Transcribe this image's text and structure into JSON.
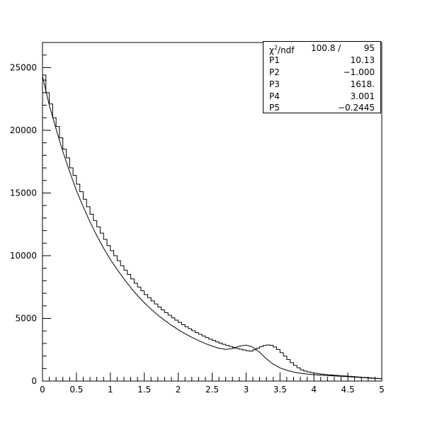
{
  "chart_data": {
    "type": "line",
    "title": "",
    "xlabel": "",
    "ylabel": "",
    "xlim": [
      0,
      5
    ],
    "ylim": [
      0,
      27000
    ],
    "x_ticks": [
      0,
      0.5,
      1,
      1.5,
      2,
      2.5,
      3,
      3.5,
      4,
      4.5,
      5
    ],
    "x_tick_labels": [
      "0",
      "0.5",
      "1",
      "1.5",
      "2",
      "2.5",
      "3",
      "3.5",
      "4",
      "4.5",
      "5"
    ],
    "y_ticks": [
      0,
      5000,
      10000,
      15000,
      20000,
      25000
    ],
    "y_tick_labels": [
      "0",
      "5000",
      "10000",
      "15000",
      "20000",
      "25000"
    ],
    "grid": false,
    "series": [
      {
        "kind": "histogram",
        "bin_edges_start": 0,
        "bin_width": 0.05,
        "values": [
          24400,
          23000,
          22100,
          21000,
          20300,
          19400,
          18500,
          17800,
          17000,
          16400,
          15700,
          15100,
          14500,
          13900,
          13300,
          12800,
          12300,
          11800,
          11300,
          10800,
          10400,
          10000,
          9600,
          9200,
          8850,
          8500,
          8150,
          7800,
          7500,
          7200,
          6900,
          6650,
          6400,
          6150,
          5900,
          5680,
          5460,
          5250,
          5050,
          4860,
          4680,
          4500,
          4330,
          4170,
          4020,
          3870,
          3730,
          3600,
          3470,
          3350,
          3240,
          3130,
          3030,
          2930,
          2840,
          2760,
          2680,
          2600,
          2540,
          2480,
          2420,
          2390,
          2500,
          2620,
          2750,
          2840,
          2880,
          2850,
          2720,
          2520,
          2270,
          2000,
          1720,
          1470,
          1250,
          1060,
          900,
          800,
          730,
          670,
          620,
          580,
          550,
          520,
          500,
          480,
          460,
          440,
          420,
          400,
          380,
          360,
          340,
          320,
          300,
          280,
          260,
          240,
          220,
          200
        ]
      },
      {
        "kind": "fit",
        "x": [
          0,
          0.1,
          0.2,
          0.3,
          0.4,
          0.5,
          0.6,
          0.7,
          0.8,
          0.9,
          1.0,
          1.1,
          1.2,
          1.3,
          1.4,
          1.5,
          1.6,
          1.7,
          1.8,
          1.9,
          2.0,
          2.1,
          2.2,
          2.3,
          2.4,
          2.5,
          2.6,
          2.7,
          2.8,
          2.9,
          3.0,
          3.1,
          3.2,
          3.3,
          3.4,
          3.5,
          3.6,
          3.7,
          3.8,
          3.9,
          4.0,
          4.2,
          4.4,
          4.6,
          4.8,
          5.0
        ],
        "y": [
          24300,
          22000,
          20100,
          18300,
          16700,
          15200,
          13900,
          12700,
          11600,
          10600,
          9700,
          8900,
          8150,
          7450,
          6820,
          6250,
          5730,
          5260,
          4840,
          4450,
          4100,
          3780,
          3490,
          3230,
          2990,
          2790,
          2620,
          2530,
          2590,
          2780,
          2870,
          2710,
          2300,
          1780,
          1350,
          1050,
          860,
          720,
          630,
          560,
          510,
          440,
          380,
          320,
          250,
          180
        ]
      }
    ],
    "stats_box": {
      "rows": [
        {
          "name": "χ²/ndf",
          "extra": "100.8   /",
          "value": "95"
        },
        {
          "name": "P1",
          "value": "10.13"
        },
        {
          "name": "P2",
          "value": "−1.000"
        },
        {
          "name": "P3",
          "value": "1618."
        },
        {
          "name": "P4",
          "value": "3.001"
        },
        {
          "name": "P5",
          "value": "−0.2445"
        }
      ]
    }
  }
}
